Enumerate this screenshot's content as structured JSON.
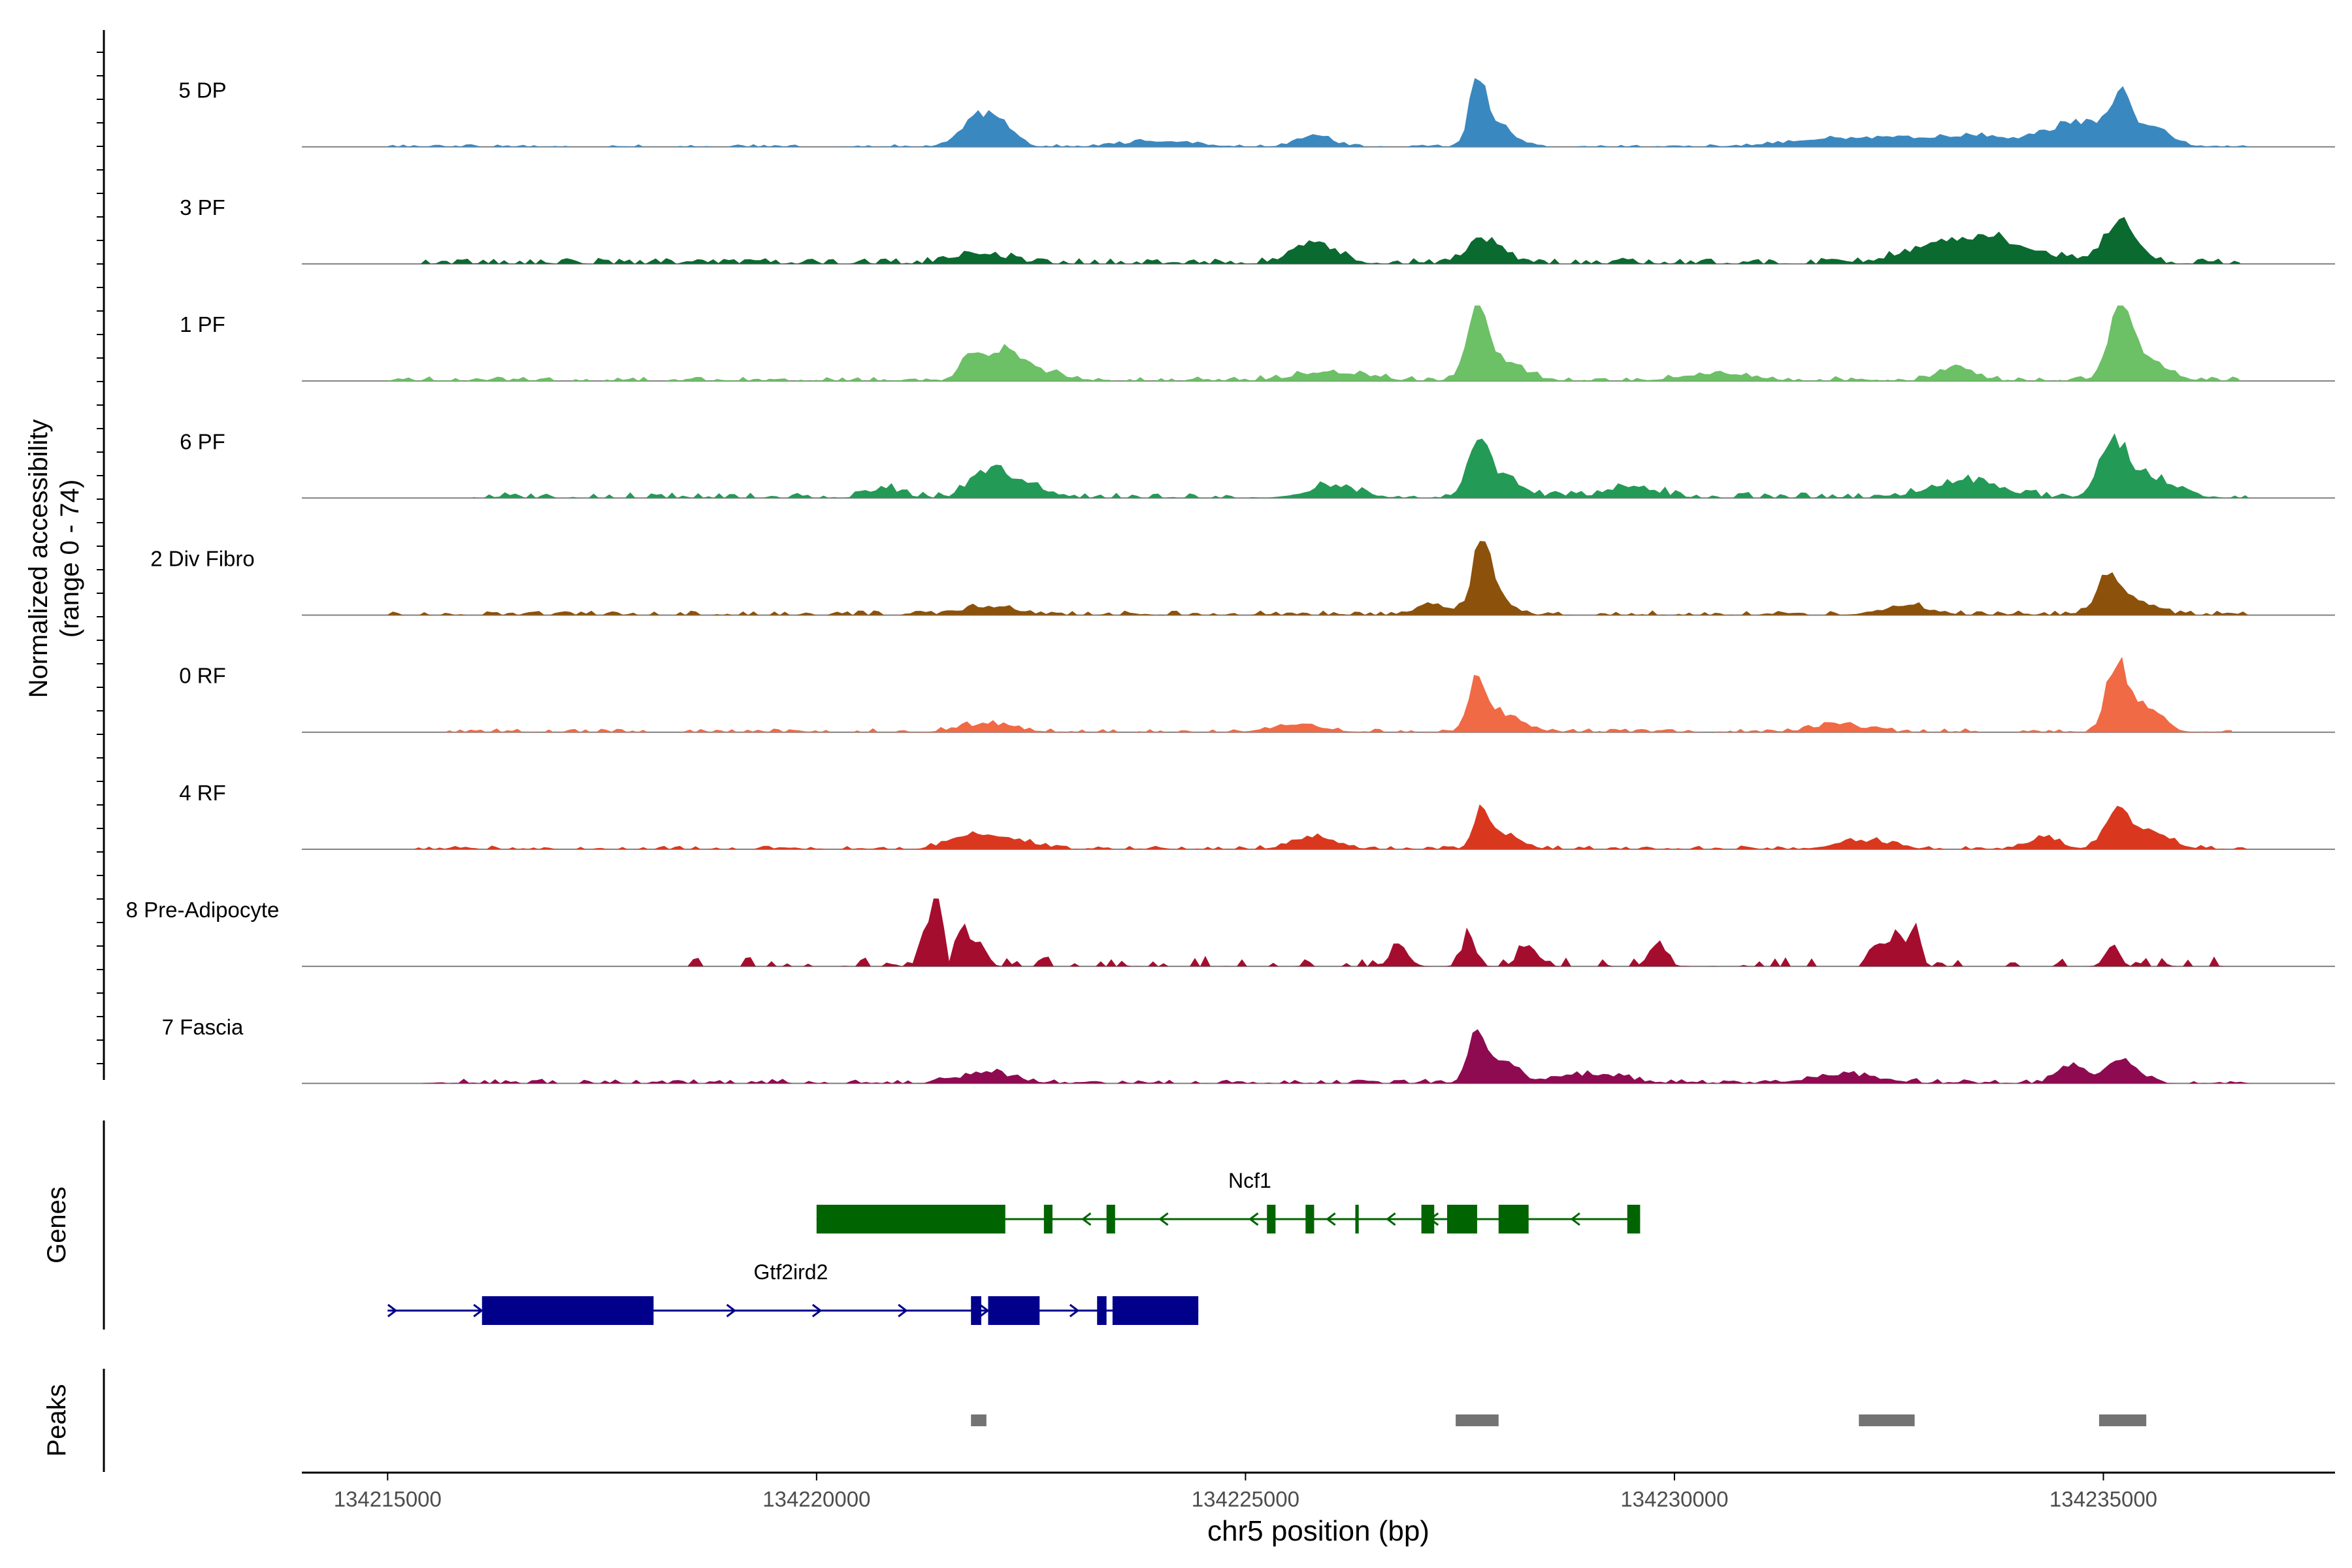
{
  "chart_data": {
    "type": "area",
    "title": "",
    "y_axis_label_line1": "Normalized accessibility",
    "y_axis_label_line2": "(range 0 - 74)",
    "y_range": [
      0,
      74
    ],
    "xlabel": "chr5 position (bp)",
    "xlim": [
      134214000,
      134237700
    ],
    "x_ticks": [
      134215000,
      134220000,
      134225000,
      134230000,
      134235000
    ],
    "x_tick_labels": [
      "134215000",
      "134220000",
      "134225000",
      "134230000",
      "134235000"
    ],
    "tracks": [
      {
        "name": "5 DP",
        "color": "#3a88c0",
        "seed": 11,
        "noise": 0.035,
        "noise_rate": 0.55,
        "start": 134215000,
        "end": 134236700,
        "peaks": [
          [
            134221900,
            200,
            0.45
          ],
          [
            134222200,
            150,
            0.2
          ],
          [
            134227700,
            90,
            0.95
          ],
          [
            134227950,
            180,
            0.3
          ],
          [
            134224000,
            400,
            0.08
          ],
          [
            134232000,
            600,
            0.12
          ],
          [
            134233500,
            600,
            0.15
          ],
          [
            134234700,
            300,
            0.35
          ],
          [
            134235200,
            130,
            0.65
          ],
          [
            134235600,
            200,
            0.25
          ],
          [
            134225800,
            200,
            0.15
          ]
        ]
      },
      {
        "name": "3 PF",
        "color": "#0a6a30",
        "seed": 22,
        "noise": 0.08,
        "noise_rate": 0.7,
        "start": 134215200,
        "end": 134236600,
        "peaks": [
          [
            134225800,
            250,
            0.3
          ],
          [
            134227800,
            200,
            0.35
          ],
          [
            134233700,
            500,
            0.3
          ],
          [
            134235200,
            200,
            0.55
          ],
          [
            134233000,
            400,
            0.15
          ],
          [
            134221900,
            300,
            0.15
          ]
        ]
      },
      {
        "name": "1 PF",
        "color": "#6cc066",
        "seed": 33,
        "noise": 0.06,
        "noise_rate": 0.65,
        "start": 134215000,
        "end": 134236600,
        "peaks": [
          [
            134221800,
            120,
            0.35
          ],
          [
            134222200,
            160,
            0.35
          ],
          [
            134222500,
            300,
            0.15
          ],
          [
            134227700,
            120,
            0.95
          ],
          [
            134228000,
            250,
            0.25
          ],
          [
            134235200,
            140,
            0.95
          ],
          [
            134235500,
            250,
            0.25
          ],
          [
            134226000,
            400,
            0.12
          ],
          [
            134230500,
            400,
            0.1
          ],
          [
            134233300,
            200,
            0.2
          ]
        ]
      },
      {
        "name": "6 PF",
        "color": "#239a56",
        "seed": 44,
        "noise": 0.08,
        "noise_rate": 0.6,
        "start": 134216000,
        "end": 134236700,
        "peaks": [
          [
            134222000,
            200,
            0.35
          ],
          [
            134222400,
            250,
            0.2
          ],
          [
            134227700,
            110,
            0.75
          ],
          [
            134227950,
            250,
            0.3
          ],
          [
            134235100,
            150,
            0.7
          ],
          [
            134235500,
            300,
            0.3
          ],
          [
            134233400,
            400,
            0.25
          ],
          [
            134226000,
            300,
            0.15
          ],
          [
            134229500,
            300,
            0.15
          ],
          [
            134220800,
            200,
            0.12
          ]
        ]
      },
      {
        "name": "2 Div Fibro",
        "color": "#8c510a",
        "seed": 55,
        "noise": 0.06,
        "noise_rate": 0.6,
        "start": 134215000,
        "end": 134236700,
        "peaks": [
          [
            134227750,
            90,
            1.0
          ],
          [
            134227900,
            180,
            0.3
          ],
          [
            134227200,
            200,
            0.15
          ],
          [
            134235050,
            130,
            0.45
          ],
          [
            134235300,
            250,
            0.2
          ],
          [
            134222000,
            300,
            0.12
          ],
          [
            134232700,
            300,
            0.12
          ]
        ]
      },
      {
        "name": "0 RF",
        "color": "#f06a45",
        "seed": 66,
        "noise": 0.05,
        "noise_rate": 0.6,
        "start": 134215600,
        "end": 134236500,
        "peaks": [
          [
            134227700,
            100,
            0.7
          ],
          [
            134228000,
            220,
            0.25
          ],
          [
            134235150,
            110,
            0.95
          ],
          [
            134235450,
            200,
            0.4
          ],
          [
            134225600,
            300,
            0.1
          ],
          [
            134222000,
            300,
            0.12
          ],
          [
            134231900,
            300,
            0.1
          ]
        ]
      },
      {
        "name": "4 RF",
        "color": "#d9381e",
        "seed": 77,
        "noise": 0.05,
        "noise_rate": 0.6,
        "start": 134215300,
        "end": 134236700,
        "peaks": [
          [
            134227750,
            90,
            0.5
          ],
          [
            134228000,
            200,
            0.2
          ],
          [
            134235150,
            130,
            0.5
          ],
          [
            134235500,
            250,
            0.25
          ],
          [
            134221800,
            250,
            0.18
          ],
          [
            134222300,
            250,
            0.12
          ],
          [
            134225800,
            250,
            0.18
          ],
          [
            134232200,
            300,
            0.12
          ],
          [
            134234300,
            200,
            0.15
          ]
        ]
      },
      {
        "name": "8 Pre-Adipocyte",
        "color": "#a50d2f",
        "seed": 88,
        "noise": 0.14,
        "noise_rate": 0.35,
        "start": 134218500,
        "end": 134236700,
        "peaks": [
          [
            134221400,
            60,
            1.0
          ],
          [
            134221250,
            60,
            0.45
          ],
          [
            134221700,
            60,
            0.6
          ],
          [
            134221900,
            80,
            0.35
          ],
          [
            134232800,
            60,
            0.7
          ],
          [
            134232600,
            60,
            0.5
          ],
          [
            134232400,
            80,
            0.35
          ],
          [
            134227600,
            80,
            0.4
          ],
          [
            134228300,
            120,
            0.25
          ],
          [
            134235100,
            80,
            0.3
          ],
          [
            134226800,
            100,
            0.3
          ],
          [
            134229800,
            100,
            0.3
          ]
        ]
      },
      {
        "name": "7 Fascia",
        "color": "#8e0b52",
        "seed": 99,
        "noise": 0.06,
        "noise_rate": 0.65,
        "start": 134215400,
        "end": 134236700,
        "peaks": [
          [
            134227700,
            100,
            0.6
          ],
          [
            134227950,
            200,
            0.3
          ],
          [
            134234600,
            150,
            0.25
          ],
          [
            134235200,
            200,
            0.3
          ],
          [
            134222000,
            300,
            0.15
          ],
          [
            134229000,
            400,
            0.12
          ],
          [
            134232000,
            400,
            0.12
          ]
        ]
      }
    ],
    "genes_label": "Genes",
    "genes": [
      {
        "name": "Ncf1",
        "color": "#006400",
        "strand": "-",
        "start": 134220000,
        "end": 134229600,
        "exons": [
          [
            134220000,
            134222200
          ],
          [
            134222650,
            134222750
          ],
          [
            134223380,
            134223480
          ],
          [
            134225250,
            134225350
          ],
          [
            134225700,
            134225800
          ],
          [
            134226280,
            134226320
          ],
          [
            134227050,
            134227200
          ],
          [
            134227350,
            134227700
          ],
          [
            134227950,
            134228300
          ],
          [
            134229450,
            134229600
          ]
        ],
        "arrows": [
          134223150,
          134224050,
          134225100,
          134226000,
          134226700,
          134227200,
          134228850
        ]
      },
      {
        "name": "Gtf2ird2",
        "color": "#00008b",
        "strand": "+",
        "start": 134215000,
        "end": 134224450,
        "exons": [
          [
            134216100,
            134218100
          ],
          [
            134221800,
            134221920
          ],
          [
            134222000,
            134222600
          ],
          [
            134223270,
            134223380
          ],
          [
            134223450,
            134224450
          ]
        ],
        "arrows": [
          134215050,
          134216050,
          134219000,
          134220000,
          134221000,
          134221950,
          134223000
        ]
      }
    ],
    "peaks_label": "Peaks",
    "peak_regions": [
      [
        134221800,
        134221980
      ],
      [
        134227450,
        134227950
      ],
      [
        134232150,
        134232800
      ],
      [
        134234950,
        134235500
      ]
    ],
    "peak_color": "#737373"
  }
}
